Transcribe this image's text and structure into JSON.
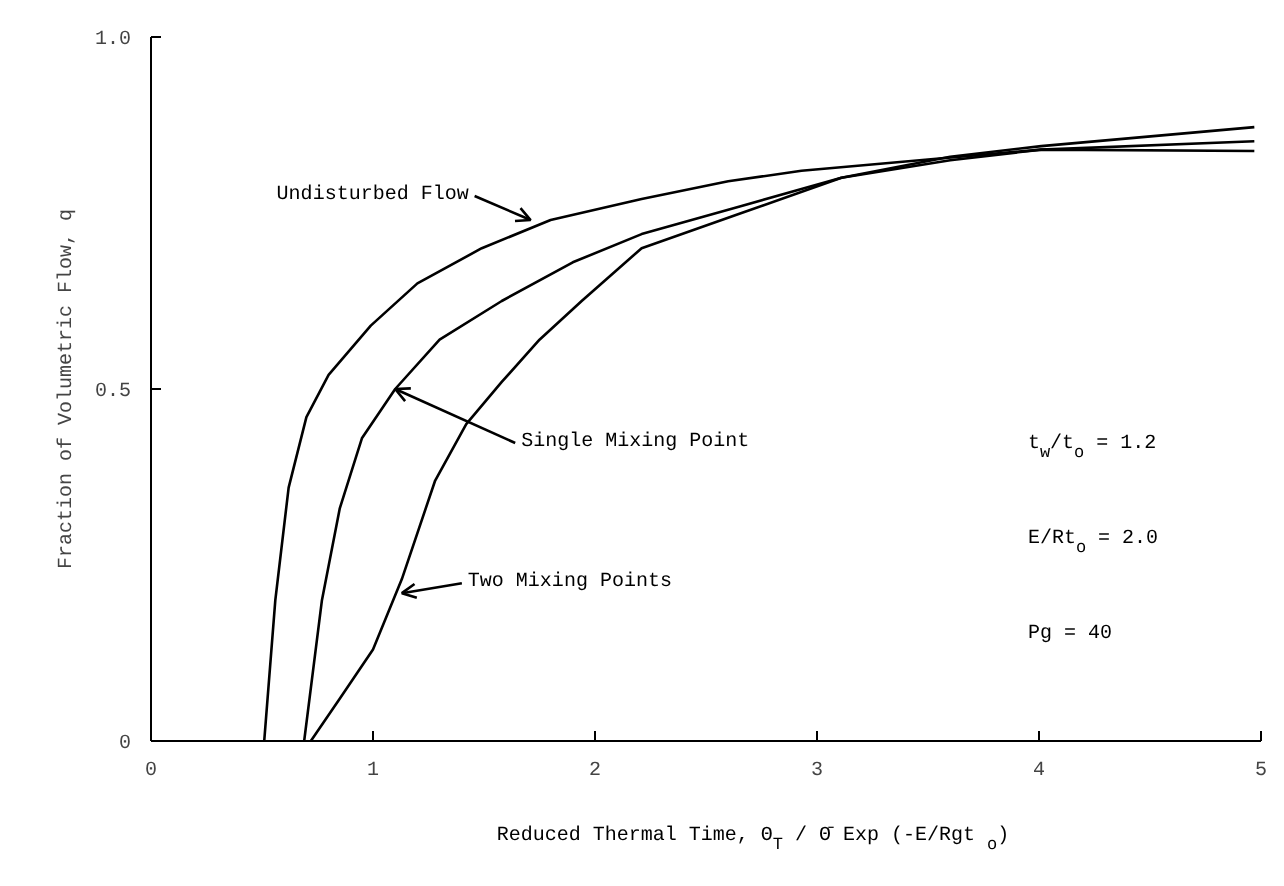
{
  "chart_data": {
    "type": "line",
    "xlabel": "Reduced Thermal Time, Θ$_{T}$ / Θ̄ Exp (-E/Rgt$_{o}$)",
    "ylabel": "Fraction of Volumetric Flow, q",
    "xlim": [
      0,
      5
    ],
    "ylim": [
      0,
      1
    ],
    "xticks": [
      0,
      1,
      2,
      3,
      4,
      5
    ],
    "yticks": [
      0,
      0.5,
      {
        "value": 1,
        "label": "1.0"
      }
    ],
    "grid": false,
    "marker": "none",
    "line_style": "solid",
    "series": [
      {
        "color": "#000000",
        "x": [
          0.51,
          0.56,
          0.62,
          0.7,
          0.8,
          0.99,
          1.2,
          1.49,
          1.8,
          2.21,
          2.6,
          2.93,
          3.5,
          4.01,
          4.97
        ],
        "values": [
          0,
          0.2,
          0.36,
          0.46,
          0.52,
          0.59,
          0.65,
          0.7,
          0.74,
          0.77,
          0.795,
          0.81,
          0.826,
          0.84,
          0.852
        ]
      },
      {
        "color": "#000000",
        "x": [
          0.69,
          0.77,
          0.85,
          0.95,
          1.1,
          1.3,
          1.58,
          1.9,
          2.21,
          2.66,
          3.11,
          3.6,
          4.01,
          4.97
        ],
        "values": [
          0,
          0.2,
          0.33,
          0.43,
          0.5,
          0.57,
          0.625,
          0.68,
          0.72,
          0.76,
          0.8,
          0.825,
          0.84,
          0.838
        ]
      },
      {
        "color": "#000000",
        "x": [
          0.72,
          0.85,
          1.0,
          1.13,
          1.28,
          1.42,
          1.58,
          1.75,
          1.94,
          2.21,
          2.66,
          3.11,
          3.6,
          4.01,
          4.97
        ],
        "values": [
          0,
          0.06,
          0.13,
          0.23,
          0.37,
          0.45,
          0.51,
          0.57,
          0.625,
          0.7,
          0.75,
          0.8,
          0.83,
          0.845,
          0.872
        ]
      }
    ],
    "annotations": [
      {
        "text": "Undisturbed Flow",
        "x": 1.71,
        "y": 0.74
      },
      {
        "text": "Single Mixing Point",
        "x": 1.1,
        "y": 0.5
      },
      {
        "text": "Two Mixing Points",
        "x": 1.13,
        "y": 0.21
      },
      "t$_{w}$/t$_{o}$ = 1.2",
      "E/Rt$_{o}$ = 2.0",
      "Pg = 40"
    ]
  }
}
